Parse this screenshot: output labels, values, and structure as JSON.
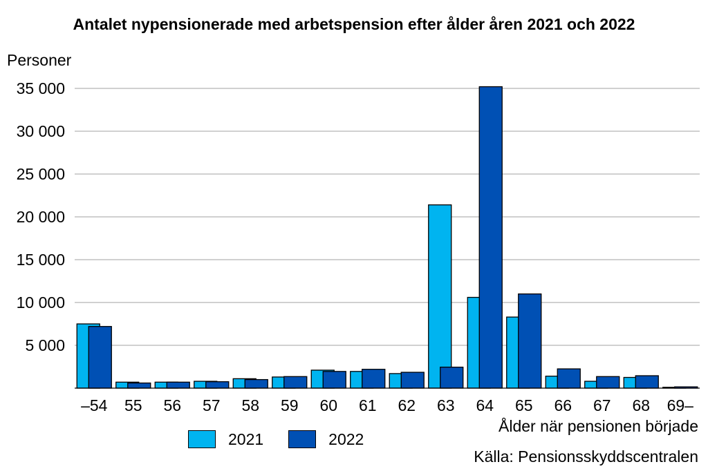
{
  "chart_data": {
    "type": "bar",
    "title": "Antalet nypensionerade med arbetspension efter ålder åren 2021 och 2022",
    "ylabel": "Personer",
    "xlabel": "Ålder när pensionen började",
    "source": "Källa: Pensionsskyddscentralen",
    "categories": [
      "–54",
      "55",
      "56",
      "57",
      "58",
      "59",
      "60",
      "61",
      "62",
      "63",
      "64",
      "65",
      "66",
      "67",
      "68",
      "69–"
    ],
    "series": [
      {
        "name": "2021",
        "color": "#00b4f0",
        "values": [
          7500,
          700,
          700,
          800,
          1100,
          1300,
          2100,
          1950,
          1700,
          21400,
          10600,
          8300,
          1400,
          800,
          1250,
          100
        ]
      },
      {
        "name": "2022",
        "color": "#0050b4",
        "values": [
          7200,
          600,
          700,
          750,
          1000,
          1350,
          1950,
          2200,
          1850,
          2450,
          35200,
          11000,
          2250,
          1350,
          1450,
          150
        ]
      }
    ],
    "ylim": [
      0,
      35000
    ],
    "yticks": [
      5000,
      10000,
      15000,
      20000,
      25000,
      30000,
      35000
    ],
    "ytick_labels": [
      "5 000",
      "10 000",
      "15 000",
      "20 000",
      "25 000",
      "30 000",
      "35 000"
    ],
    "grid": true,
    "legend_position": "bottom"
  }
}
